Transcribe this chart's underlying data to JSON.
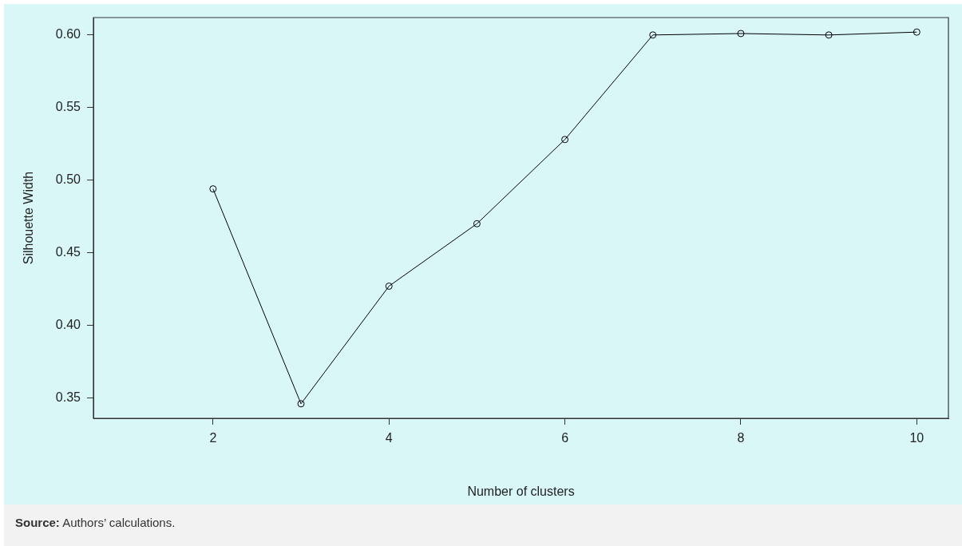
{
  "chart_data": {
    "type": "line",
    "xlabel": "Number of clusters",
    "ylabel": "Silhouette Width",
    "x": [
      2,
      3,
      4,
      5,
      6,
      7,
      8,
      9,
      10
    ],
    "series": [
      {
        "color": "#000000",
        "values": [
          0.494,
          0.346,
          0.427,
          0.47,
          0.528,
          0.6,
          0.601,
          0.6,
          0.602
        ]
      }
    ],
    "xlim": [
      0.64,
      10.36
    ],
    "xticks": [
      2,
      4,
      6,
      8,
      10
    ],
    "ylim": [
      0.336,
      0.612
    ],
    "yticks": [
      {
        "value": 0.35,
        "label": "0.35"
      },
      {
        "value": 0.4,
        "label": "0.40"
      },
      {
        "value": 0.45,
        "label": "0.45"
      },
      {
        "value": 0.5,
        "label": "0.50"
      },
      {
        "value": 0.55,
        "label": "0.55"
      },
      {
        "value": 0.6,
        "label": "0.60"
      }
    ],
    "grid": false,
    "legend": false,
    "marker": "circle",
    "line_style": "solid",
    "annotations": [
      "Source: Authors’ calculations."
    ]
  }
}
